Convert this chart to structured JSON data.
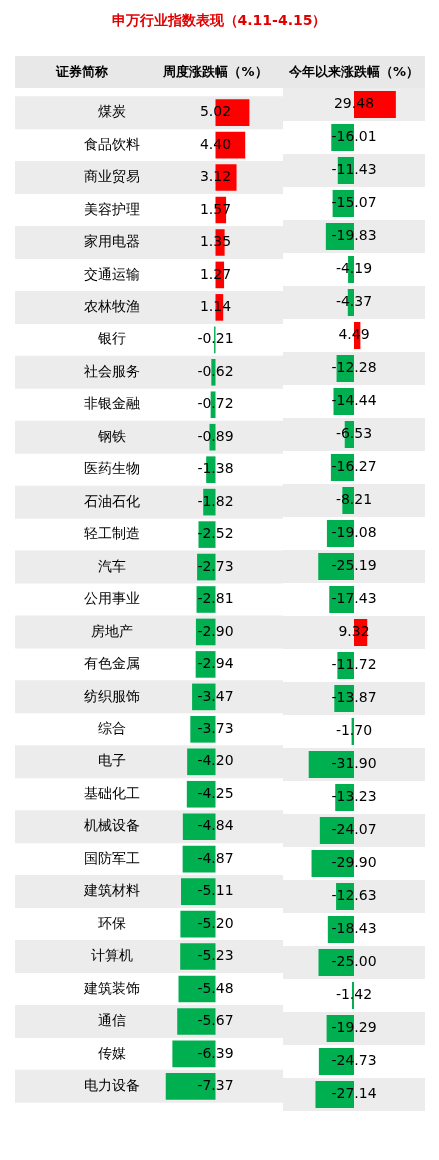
{
  "chart_data": [
    {
      "type": "bar",
      "orientation": "horizontal",
      "title": "申万行业指数表现（4.11-4.15）",
      "ylabel": "证券简称",
      "xlabel": "周度涨跌幅（%）",
      "tick_labels": "y",
      "legend": false,
      "categories": [
        "煤炭",
        "食品饮料",
        "商业贸易",
        "美容护理",
        "家用电器",
        "交通运输",
        "农林牧渔",
        "银行",
        "社会服务",
        "非银金融",
        "钢铁",
        "医药生物",
        "石油石化",
        "轻工制造",
        "汽车",
        "公用事业",
        "房地产",
        "有色金属",
        "纺织服饰",
        "综合",
        "电子",
        "基础化工",
        "机械设备",
        "国防军工",
        "建筑材料",
        "环保",
        "计算机",
        "建筑装饰",
        "通信",
        "传媒",
        "电力设备"
      ],
      "values": [
        5.02,
        4.4,
        3.12,
        1.57,
        1.35,
        1.27,
        1.14,
        -0.21,
        -0.62,
        -0.72,
        -0.89,
        -1.38,
        -1.82,
        -2.52,
        -2.73,
        -2.81,
        -2.9,
        -2.94,
        -3.47,
        -3.73,
        -4.2,
        -4.25,
        -4.84,
        -4.87,
        -5.11,
        -5.2,
        -5.23,
        -5.48,
        -5.67,
        -6.39,
        -7.37
      ],
      "value_labels": [
        "5.02",
        "4.40",
        "3.12",
        "1.57",
        "1.35",
        "1.27",
        "1.14",
        "-0.21",
        "-0.62",
        "-0.72",
        "-0.89",
        "-1.38",
        "-1.82",
        "-2.52",
        "-2.73",
        "-2.81",
        "-2.90",
        "-2.94",
        "-3.47",
        "-3.73",
        "-4.20",
        "-4.25",
        "-4.84",
        "-4.87",
        "-5.11",
        "-5.20",
        "-5.23",
        "-5.48",
        "-5.67",
        "-6.39",
        "-7.37"
      ],
      "colors": [
        "#ff0000",
        "#ff0000",
        "#ff0000",
        "#ff0000",
        "#ff0000",
        "#ff0000",
        "#ff0000",
        "#00b050",
        "#00b050",
        "#00b050",
        "#00b050",
        "#00b050",
        "#00b050",
        "#00b050",
        "#00b050",
        "#00b050",
        "#00b050",
        "#00b050",
        "#00b050",
        "#00b050",
        "#00b050",
        "#00b050",
        "#00b050",
        "#00b050",
        "#00b050",
        "#00b050",
        "#00b050",
        "#00b050",
        "#00b050",
        "#00b050",
        "#00b050"
      ]
    },
    {
      "type": "bar",
      "orientation": "horizontal",
      "xlabel": "今年以来涨跌幅（%）",
      "tick_labels": false,
      "legend": false,
      "categories": [
        null,
        null,
        null,
        null,
        null,
        null,
        null,
        null,
        null,
        null,
        null,
        null,
        null,
        null,
        null,
        null,
        null,
        null,
        null,
        null,
        null,
        null,
        null,
        null,
        null,
        null,
        null,
        null,
        null,
        null,
        null
      ],
      "values": [
        29.48,
        -16.01,
        -11.43,
        -15.07,
        -19.83,
        -4.19,
        -4.37,
        4.49,
        -12.28,
        -14.44,
        -6.53,
        -16.27,
        -8.21,
        -19.08,
        -25.19,
        -17.43,
        9.32,
        -11.72,
        -13.87,
        -1.7,
        -31.9,
        -13.23,
        -24.07,
        -29.9,
        -12.63,
        -18.43,
        -25.0,
        -1.42,
        -19.29,
        -24.73,
        -27.14
      ],
      "value_labels": [
        "29.48",
        "-16.01",
        "-11.43",
        "-15.07",
        "-19.83",
        "-4.19",
        "-4.37",
        "4.49",
        "-12.28",
        "-14.44",
        "-6.53",
        "-16.27",
        "-8.21",
        "-19.08",
        "-25.19",
        "-17.43",
        "9.32",
        "-11.72",
        "-13.87",
        "-1.70",
        "-31.90",
        "-13.23",
        "-24.07",
        "-29.90",
        "-12.63",
        "-18.43",
        "-25.00",
        "-1.42",
        "-19.29",
        "-24.73",
        "-27.14"
      ],
      "colors": [
        "#ff0000",
        "#00b050",
        "#00b050",
        "#00b050",
        "#00b050",
        "#00b050",
        "#00b050",
        "#ff0000",
        "#00b050",
        "#00b050",
        "#00b050",
        "#00b050",
        "#00b050",
        "#00b050",
        "#00b050",
        "#00b050",
        "#ff0000",
        "#00b050",
        "#00b050",
        "#00b050",
        "#00b050",
        "#00b050",
        "#00b050",
        "#00b050",
        "#00b050",
        "#00b050",
        "#00b050",
        "#00b050",
        "#00b050",
        "#00b050",
        "#00b050"
      ]
    }
  ]
}
